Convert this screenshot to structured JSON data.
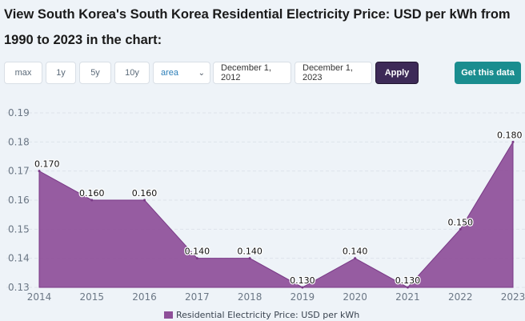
{
  "page": {
    "title": "View South Korea's South Korea Residential Electricity Price: USD per kWh from 1990 to 2023 in the chart:"
  },
  "toolbar": {
    "ranges": [
      "max",
      "1y",
      "5y",
      "10y"
    ],
    "chart_type": "area",
    "start_date": "December 1, 2012",
    "end_date": "December 1, 2023",
    "apply_label": "Apply",
    "get_data_label": "Get this data"
  },
  "colors": {
    "area_fill": "#8e4f99",
    "area_stroke": "#7a3a87",
    "apply_bg": "#3d2a57",
    "cta_bg": "#1a8d8f"
  },
  "chart_data": {
    "type": "area",
    "x": [
      "2014",
      "2015",
      "2016",
      "2017",
      "2018",
      "2019",
      "2020",
      "2021",
      "2022",
      "2023"
    ],
    "series": [
      {
        "name": "Residential Electricity Price: USD per kWh",
        "values": [
          0.17,
          0.16,
          0.16,
          0.14,
          0.14,
          0.13,
          0.14,
          0.13,
          0.15,
          0.18
        ],
        "labels": [
          "0.170",
          "0.160",
          "0.160",
          "0.140",
          "0.140",
          "0.130",
          "0.140",
          "0.130",
          "0.150",
          "0.180"
        ]
      }
    ],
    "y_ticks": [
      "0.19",
      "0.18",
      "0.17",
      "0.16",
      "0.15",
      "0.14",
      "0.13"
    ],
    "ylim": [
      0.13,
      0.19
    ],
    "grid": true,
    "legend_position": "bottom"
  }
}
